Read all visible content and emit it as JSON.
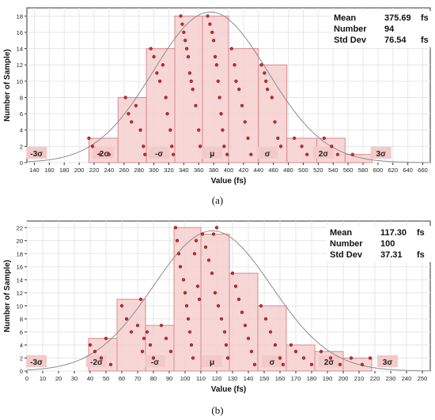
{
  "colors": {
    "bar_fill": "#f6cfcf",
    "bar_stroke": "#d98c8c",
    "point_fill": "#d92b2b",
    "point_stroke": "#7a1010",
    "curve": "#8c8c8c",
    "grid": "#e6e6e6",
    "region_label_bg": "#f3c9c9"
  },
  "chart_data": [
    {
      "type": "bar",
      "caption": "(a)",
      "xlabel": "Value  (fs)",
      "ylabel": "Number of Sample)",
      "xlim": [
        130,
        670
      ],
      "ylim": [
        0,
        19
      ],
      "xticks": [
        140,
        160,
        180,
        200,
        220,
        240,
        260,
        280,
        300,
        320,
        340,
        360,
        380,
        400,
        420,
        440,
        460,
        480,
        500,
        520,
        540,
        560,
        580,
        600,
        620,
        640,
        660
      ],
      "yticks": [
        0,
        2,
        4,
        6,
        8,
        10,
        12,
        14,
        16,
        18
      ],
      "bins": [
        {
          "x0": 213,
          "x1": 252,
          "value": 3
        },
        {
          "x0": 252,
          "x1": 290,
          "value": 8
        },
        {
          "x0": 290,
          "x1": 328,
          "value": 14
        },
        {
          "x0": 328,
          "x1": 365,
          "value": 18
        },
        {
          "x0": 365,
          "x1": 400,
          "value": 18
        },
        {
          "x0": 400,
          "x1": 440,
          "value": 14
        },
        {
          "x0": 440,
          "x1": 478,
          "value": 12
        },
        {
          "x0": 478,
          "x1": 518,
          "value": 3
        },
        {
          "x0": 518,
          "x1": 556,
          "value": 3
        },
        {
          "x0": 556,
          "x1": 592,
          "value": 1
        }
      ],
      "points": [
        [
          213,
          3
        ],
        [
          218,
          2
        ],
        [
          228,
          1
        ],
        [
          240,
          1
        ],
        [
          262,
          8
        ],
        [
          266,
          6
        ],
        [
          270,
          5
        ],
        [
          276,
          7
        ],
        [
          282,
          4
        ],
        [
          286,
          2
        ],
        [
          288,
          1
        ],
        [
          296,
          14
        ],
        [
          300,
          13
        ],
        [
          304,
          11
        ],
        [
          308,
          10
        ],
        [
          312,
          12
        ],
        [
          316,
          8
        ],
        [
          318,
          6
        ],
        [
          322,
          4
        ],
        [
          324,
          2
        ],
        [
          326,
          1
        ],
        [
          336,
          18
        ],
        [
          338,
          17
        ],
        [
          340,
          16
        ],
        [
          342,
          15
        ],
        [
          344,
          14
        ],
        [
          346,
          13
        ],
        [
          348,
          11
        ],
        [
          350,
          10
        ],
        [
          352,
          9
        ],
        [
          356,
          7
        ],
        [
          360,
          4
        ],
        [
          362,
          2
        ],
        [
          372,
          18
        ],
        [
          375,
          17
        ],
        [
          378,
          16
        ],
        [
          380,
          15
        ],
        [
          382,
          13
        ],
        [
          384,
          12
        ],
        [
          386,
          10
        ],
        [
          388,
          8
        ],
        [
          390,
          6
        ],
        [
          392,
          4
        ],
        [
          394,
          2
        ],
        [
          398,
          1
        ],
        [
          404,
          14
        ],
        [
          408,
          12
        ],
        [
          410,
          10
        ],
        [
          414,
          9
        ],
        [
          418,
          7
        ],
        [
          422,
          5
        ],
        [
          426,
          3
        ],
        [
          430,
          1
        ],
        [
          444,
          12
        ],
        [
          448,
          11
        ],
        [
          450,
          10
        ],
        [
          452,
          9
        ],
        [
          458,
          8
        ],
        [
          462,
          5
        ],
        [
          466,
          3
        ],
        [
          470,
          2
        ],
        [
          488,
          3
        ],
        [
          498,
          2
        ],
        [
          505,
          1
        ],
        [
          528,
          3
        ],
        [
          538,
          2
        ],
        [
          546,
          1
        ],
        [
          566,
          1
        ]
      ],
      "curve": {
        "mean": 375.69,
        "std": 76.54,
        "peak": 18.5
      },
      "regions": [
        {
          "label": "-3σ",
          "center": 143
        },
        {
          "label": "-2σ",
          "center": 232
        },
        {
          "label": "-σ",
          "center": 307
        },
        {
          "label": "μ",
          "center": 378
        },
        {
          "label": "σ",
          "center": 452
        },
        {
          "label": "2σ",
          "center": 527
        },
        {
          "label": "3σ",
          "center": 604
        }
      ],
      "stats": [
        {
          "key": "Mean",
          "value": "375.69",
          "unit": "fs"
        },
        {
          "key": "Number",
          "value": "94",
          "unit": ""
        },
        {
          "key": "Std Dev",
          "value": "76.54",
          "unit": "fs"
        }
      ]
    },
    {
      "type": "bar",
      "caption": "(b)",
      "xlabel": "Value  (fs)",
      "ylabel": "Number of Sample)",
      "xlim": [
        0,
        255
      ],
      "ylim": [
        0,
        23
      ],
      "xticks": [
        0,
        10,
        20,
        30,
        40,
        50,
        60,
        70,
        80,
        90,
        100,
        110,
        120,
        130,
        140,
        150,
        160,
        170,
        180,
        190,
        200,
        210,
        220,
        230,
        240,
        250
      ],
      "yticks": [
        0,
        2,
        4,
        6,
        8,
        10,
        12,
        14,
        16,
        18,
        20,
        22
      ],
      "bins": [
        {
          "x0": 39,
          "x1": 57,
          "value": 5
        },
        {
          "x0": 57,
          "x1": 75,
          "value": 11
        },
        {
          "x0": 75,
          "x1": 93,
          "value": 7
        },
        {
          "x0": 93,
          "x1": 110,
          "value": 22
        },
        {
          "x0": 110,
          "x1": 128,
          "value": 21
        },
        {
          "x0": 128,
          "x1": 146,
          "value": 15
        },
        {
          "x0": 146,
          "x1": 164,
          "value": 10
        },
        {
          "x0": 164,
          "x1": 182,
          "value": 4
        },
        {
          "x0": 182,
          "x1": 200,
          "value": 3
        },
        {
          "x0": 200,
          "x1": 218,
          "value": 2
        }
      ],
      "points": [
        [
          40,
          4
        ],
        [
          43,
          3
        ],
        [
          47,
          2
        ],
        [
          50,
          5
        ],
        [
          53,
          1
        ],
        [
          60,
          10
        ],
        [
          63,
          8
        ],
        [
          66,
          6
        ],
        [
          70,
          7
        ],
        [
          72,
          11
        ],
        [
          74,
          5
        ],
        [
          73,
          3
        ],
        [
          76,
          6
        ],
        [
          78,
          4
        ],
        [
          80,
          2
        ],
        [
          85,
          7
        ],
        [
          88,
          5
        ],
        [
          91,
          3
        ],
        [
          94,
          22
        ],
        [
          95,
          20
        ],
        [
          96,
          18
        ],
        [
          97,
          16
        ],
        [
          99,
          14
        ],
        [
          100,
          12
        ],
        [
          101,
          10
        ],
        [
          102,
          8
        ],
        [
          103,
          6
        ],
        [
          104,
          4
        ],
        [
          105,
          2
        ],
        [
          106,
          18
        ],
        [
          107,
          20
        ],
        [
          108,
          13
        ],
        [
          109,
          11
        ],
        [
          111,
          21
        ],
        [
          113,
          19
        ],
        [
          115,
          17
        ],
        [
          117,
          15
        ],
        [
          119,
          12
        ],
        [
          121,
          10
        ],
        [
          123,
          8
        ],
        [
          125,
          6
        ],
        [
          126,
          4
        ],
        [
          127,
          2
        ],
        [
          120,
          22
        ],
        [
          118,
          21
        ],
        [
          130,
          15
        ],
        [
          132,
          13
        ],
        [
          134,
          11
        ],
        [
          136,
          9
        ],
        [
          138,
          7
        ],
        [
          140,
          5
        ],
        [
          142,
          3
        ],
        [
          144,
          1
        ],
        [
          148,
          10
        ],
        [
          151,
          8
        ],
        [
          154,
          6
        ],
        [
          157,
          4
        ],
        [
          160,
          2
        ],
        [
          162,
          1
        ],
        [
          167,
          4
        ],
        [
          170,
          3
        ],
        [
          175,
          2
        ],
        [
          180,
          1
        ],
        [
          186,
          3
        ],
        [
          192,
          2
        ],
        [
          198,
          1
        ],
        [
          205,
          2
        ],
        [
          212,
          1
        ],
        [
          217,
          2
        ]
      ],
      "curve": {
        "mean": 117.3,
        "std": 37.31,
        "peak": 21.5
      },
      "regions": [
        {
          "label": "-3σ",
          "center": 6
        },
        {
          "label": "-2σ",
          "center": 44
        },
        {
          "label": "-σ",
          "center": 81
        },
        {
          "label": "μ",
          "center": 117
        },
        {
          "label": "σ",
          "center": 155
        },
        {
          "label": "2σ",
          "center": 191
        },
        {
          "label": "3σ",
          "center": 228
        }
      ],
      "stats": [
        {
          "key": "Mean",
          "value": "117.30",
          "unit": "fs"
        },
        {
          "key": "Number",
          "value": "100",
          "unit": ""
        },
        {
          "key": "Std Dev",
          "value": "37.31",
          "unit": "fs"
        }
      ]
    }
  ]
}
